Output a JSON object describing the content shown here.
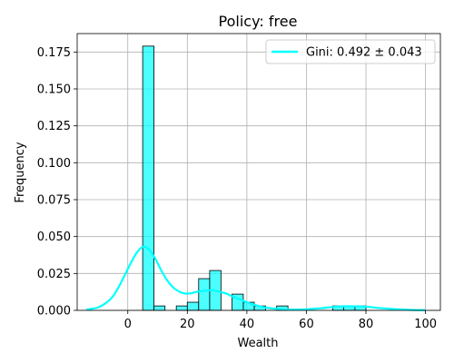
{
  "chart_data": {
    "type": "bar",
    "title": "Policy: free",
    "xlabel": "Wealth",
    "ylabel": "Frequency",
    "xlim": [
      -17,
      105
    ],
    "ylim": [
      0,
      0.1875
    ],
    "xticks": [
      0,
      20,
      40,
      60,
      80,
      100
    ],
    "yticks": [
      0.0,
      0.025,
      0.05,
      0.075,
      0.1,
      0.125,
      0.15,
      0.175
    ],
    "ytick_labels": [
      "0.000",
      "0.025",
      "0.050",
      "0.075",
      "0.100",
      "0.125",
      "0.150",
      "0.175"
    ],
    "grid": true,
    "legend_position": "top-right",
    "histogram": {
      "color": "#00ffff",
      "opacity": 0.7,
      "bins": [
        {
          "x0": 5.0,
          "x1": 8.8,
          "y": 0.179
        },
        {
          "x0": 8.8,
          "x1": 12.5,
          "y": 0.003
        },
        {
          "x0": 16.3,
          "x1": 20.0,
          "y": 0.003
        },
        {
          "x0": 20.0,
          "x1": 23.8,
          "y": 0.0055
        },
        {
          "x0": 23.8,
          "x1": 27.5,
          "y": 0.0215
        },
        {
          "x0": 27.5,
          "x1": 31.3,
          "y": 0.027
        },
        {
          "x0": 35.0,
          "x1": 38.8,
          "y": 0.011
        },
        {
          "x0": 38.8,
          "x1": 42.5,
          "y": 0.0055
        },
        {
          "x0": 42.5,
          "x1": 46.3,
          "y": 0.003
        },
        {
          "x0": 50.0,
          "x1": 53.8,
          "y": 0.003
        },
        {
          "x0": 68.8,
          "x1": 72.5,
          "y": 0.003
        },
        {
          "x0": 72.5,
          "x1": 76.3,
          "y": 0.003
        },
        {
          "x0": 76.3,
          "x1": 80.0,
          "y": 0.003
        }
      ]
    },
    "series": [
      {
        "name": "Gini: 0.492 ± 0.043",
        "type": "line",
        "color": "#00ffff",
        "x": [
          -14,
          -10,
          -7,
          -5,
          -3,
          -1,
          1,
          3,
          5,
          7,
          9,
          11,
          13,
          15,
          17,
          19,
          21,
          23,
          25,
          27,
          29,
          31,
          33,
          35,
          37,
          40,
          43,
          46,
          50,
          55,
          60,
          65,
          70,
          75,
          80,
          85,
          90,
          95,
          100
        ],
        "y": [
          0.0005,
          0.002,
          0.0055,
          0.0095,
          0.016,
          0.024,
          0.032,
          0.039,
          0.043,
          0.0415,
          0.036,
          0.028,
          0.021,
          0.016,
          0.013,
          0.0115,
          0.0115,
          0.0125,
          0.013,
          0.0135,
          0.0135,
          0.0125,
          0.0115,
          0.0095,
          0.008,
          0.0055,
          0.0035,
          0.002,
          0.001,
          0.0005,
          0.0007,
          0.0015,
          0.0025,
          0.0028,
          0.0025,
          0.0015,
          0.0008,
          0.0003,
          0.0001
        ]
      }
    ]
  }
}
